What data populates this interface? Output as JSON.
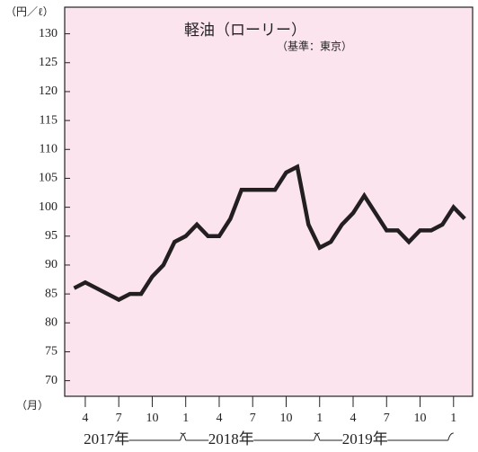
{
  "chart_data": {
    "type": "line",
    "title": "軽油（ローリー）",
    "subtitle": "（基準：東京）",
    "y_unit_label": "（円／ℓ）",
    "x_unit_label": "（月）",
    "year_labels": [
      "2017年",
      "2018年",
      "2019年"
    ],
    "categories": [
      null,
      "4",
      null,
      null,
      "7",
      null,
      null,
      "10",
      null,
      null,
      "1",
      null,
      null,
      "4",
      null,
      null,
      "7",
      null,
      null,
      "10",
      null,
      null,
      "1",
      null,
      null,
      "4",
      null,
      null,
      "7",
      null,
      null,
      "10",
      null,
      null,
      "1",
      null
    ],
    "series": [
      {
        "name": "軽油",
        "color": "#231f20",
        "values": [
          86,
          87,
          86,
          85,
          84,
          85,
          85,
          88,
          90,
          94,
          95,
          97,
          95,
          95,
          98,
          103,
          103,
          103,
          103,
          106,
          107,
          97,
          93,
          94,
          97,
          99,
          102,
          99,
          96,
          96,
          94,
          96,
          96,
          97,
          100,
          98
        ]
      }
    ],
    "ylim": [
      67.3,
      134.6
    ],
    "yticks": [
      70,
      75,
      80,
      85,
      90,
      95,
      100,
      105,
      110,
      115,
      120,
      125,
      130
    ],
    "background": "#fce4ef"
  }
}
